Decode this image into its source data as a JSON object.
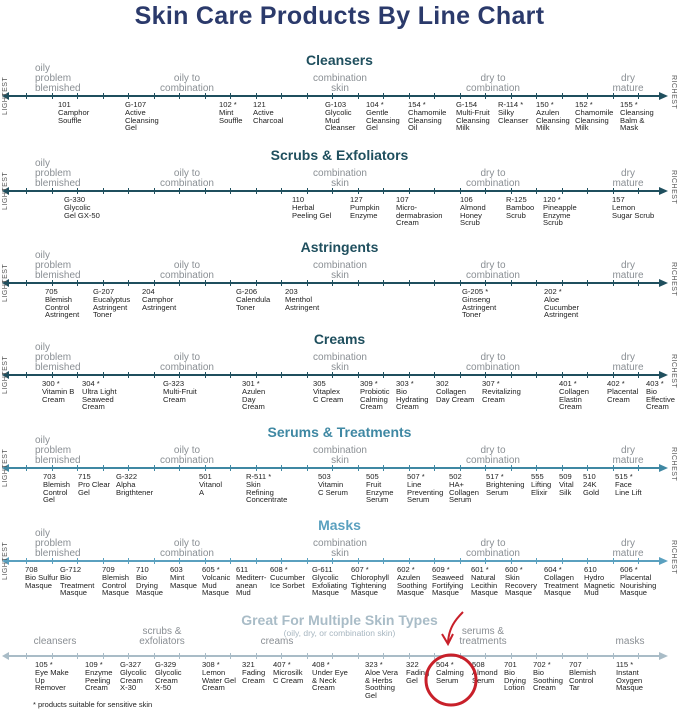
{
  "title": "Skin Care Products By Line Chart",
  "end_labels": {
    "left": "LIGHTEST",
    "right": "RICHEST"
  },
  "zones": [
    "oily\nproblem\nblemished",
    "oily to\ncombination",
    "combination\nskin",
    "dry to\ncombination",
    "dry\nmature"
  ],
  "colors": {
    "title": "#2b3a6b",
    "dark_teal": "#1f4f5e",
    "serums": "#3f88a3",
    "masks": "#5aa0bf",
    "multiple": "#a9bcc7",
    "highlight": "#c8202a"
  },
  "sections": [
    {
      "title": "Cleansers",
      "color": "#1f4f5e",
      "products": [
        {
          "code": "101",
          "name": "Camphor\nSouffle"
        },
        {
          "code": "G-107",
          "name": "Active\nCleansing\nGel"
        },
        {
          "code": "102 *",
          "name": "Mint\nSouffle"
        },
        {
          "code": "121",
          "name": "Active\nCharcoal"
        },
        {
          "code": "G-103",
          "name": "Glycolic\nMud\nCleanser"
        },
        {
          "code": "104 *",
          "name": "Gentle\nCleansing\nGel"
        },
        {
          "code": "154 *",
          "name": "Chamomile\nCleansing\nOil"
        },
        {
          "code": "G-154",
          "name": "Multi-Fruit\nCleansing\nMilk"
        },
        {
          "code": "R-114 *",
          "name": "Silky\nCleanser"
        },
        {
          "code": "150 *",
          "name": "Azulen\nCleansing\nMilk"
        },
        {
          "code": "152 *",
          "name": "Chamomile\nCleansing\nMilk"
        },
        {
          "code": "155 *",
          "name": "Cleansing\nBalm &\nMask"
        }
      ]
    },
    {
      "title": "Scrubs & Exfoliators",
      "color": "#1f4f5e",
      "products": [
        {
          "code": "G-330",
          "name": "Glycolic\nGel GX-50"
        },
        {
          "code": "110",
          "name": "Herbal\nPeeling Gel"
        },
        {
          "code": "127",
          "name": "Pumpkin\nEnzyme"
        },
        {
          "code": "107",
          "name": "Micro-\ndermabrasion\nCream"
        },
        {
          "code": "106",
          "name": "Almond\nHoney\nScrub"
        },
        {
          "code": "R-125",
          "name": "Bamboo\nScrub"
        },
        {
          "code": "120 *",
          "name": "Pineapple\nEnzyme\nScrub"
        },
        {
          "code": "157",
          "name": "Lemon\nSugar Scrub"
        }
      ]
    },
    {
      "title": "Astringents",
      "color": "#1f4f5e",
      "products": [
        {
          "code": "705",
          "name": "Blemish\nControl\nAstringent"
        },
        {
          "code": "G-207",
          "name": "Eucalyptus\nAstringent\nToner"
        },
        {
          "code": "204",
          "name": "Camphor\nAstringent"
        },
        {
          "code": "G-206",
          "name": "Calendula\nToner"
        },
        {
          "code": "203",
          "name": "Menthol\nAstringent"
        },
        {
          "code": "G-205 *",
          "name": "Ginseng\nAstringent\nToner"
        },
        {
          "code": "202 *",
          "name": "Aloe\nCucumber\nAstringent"
        }
      ]
    },
    {
      "title": "Creams",
      "color": "#1f4f5e",
      "products": [
        {
          "code": "300 *",
          "name": "Vitamin B\nCream"
        },
        {
          "code": "304 *",
          "name": "Ultra Light\nSeaweed\nCream"
        },
        {
          "code": "G-323",
          "name": "Multi-Fruit\nCream"
        },
        {
          "code": "301 *",
          "name": "Azulen\nDay\nCream"
        },
        {
          "code": "305",
          "name": "Vitaplex\nC Cream"
        },
        {
          "code": "309 *",
          "name": "Probiotic\nCalming\nCream"
        },
        {
          "code": "303 *",
          "name": "Bio\nHydrating\nCream"
        },
        {
          "code": "302",
          "name": "Collagen\nDay Cream"
        },
        {
          "code": "307 *",
          "name": "Revitalizing\nCream"
        },
        {
          "code": "401 *",
          "name": "Collagen\nElastin\nCream"
        },
        {
          "code": "402 *",
          "name": "Placental\nCream"
        },
        {
          "code": "403 *",
          "name": "Bio\nEffective\nCream"
        }
      ]
    },
    {
      "title": "Serums & Treatments",
      "color": "#3f88a3",
      "products": [
        {
          "code": "703",
          "name": "Blemish\nControl\nGel"
        },
        {
          "code": "715",
          "name": "Pro Clear\nGel"
        },
        {
          "code": "G-322",
          "name": "Alpha\nBrigthtener"
        },
        {
          "code": "501",
          "name": "Vitanol\nA"
        },
        {
          "code": "R-511 *",
          "name": "Skin\nRefining\nConcentrate"
        },
        {
          "code": "503",
          "name": "Vitamin\nC Serum"
        },
        {
          "code": "505",
          "name": "Fruit\nEnzyme\nSerum"
        },
        {
          "code": "507 *",
          "name": "Line\nPreventing\nSerum"
        },
        {
          "code": "502",
          "name": "HA+\nCollagen\nSerum"
        },
        {
          "code": "517 *",
          "name": "Brightening\nSerum"
        },
        {
          "code": "555",
          "name": "Lifting\nElixir"
        },
        {
          "code": "509",
          "name": "Vital\nSilk"
        },
        {
          "code": "510",
          "name": "24K\nGold"
        },
        {
          "code": "515 *",
          "name": "Face\nLine Lift"
        }
      ]
    },
    {
      "title": "Masks",
      "color": "#5aa0bf",
      "products": [
        {
          "code": "708",
          "name": "Bio Sulfur\nMasque"
        },
        {
          "code": "G-712",
          "name": "Bio\nTreatment\nMasque"
        },
        {
          "code": "709",
          "name": "Blemish\nControl\nMasque"
        },
        {
          "code": "710",
          "name": "Bio\nDrying\nMasque"
        },
        {
          "code": "603",
          "name": "Mint\nMasque"
        },
        {
          "code": "605 *",
          "name": "Volcanic\nMud\nMasque"
        },
        {
          "code": "611",
          "name": "Mediterr-\nanean\nMud"
        },
        {
          "code": "608 *",
          "name": "Cucumber\nIce Sorbet"
        },
        {
          "code": "G-611",
          "name": "Glycolic\nExfoliating\nMasque"
        },
        {
          "code": "607 *",
          "name": "Chlorophyll\nTightening\nMasque"
        },
        {
          "code": "602 *",
          "name": "Azulen\nSoothing\nMasque"
        },
        {
          "code": "609 *",
          "name": "Seaweed\nFortifying\nMasque"
        },
        {
          "code": "601 *",
          "name": "Natural\nLecithin\nMasque"
        },
        {
          "code": "600 *",
          "name": "Skin\nRecovery\nMasque"
        },
        {
          "code": "604 *",
          "name": "Collagen\nTreatment\nMasque"
        },
        {
          "code": "610",
          "name": "Hydro\nMagnetic\nMud"
        },
        {
          "code": "606 *",
          "name": "Placental\nNourishing\nMasque"
        }
      ]
    }
  ],
  "multiple": {
    "title": "Great For Multiple Skin Types",
    "subtitle": "(oily, dry, or combination skin)",
    "color": "#a9bcc7",
    "zones": [
      "cleansers",
      "scrubs &\nexfoliators",
      "creams",
      "serums &\ntreatments",
      "masks"
    ],
    "highlighted_product": "504 *",
    "products": [
      {
        "code": "105 *",
        "name": "Eye Make\nUp\nRemover"
      },
      {
        "code": "109 *",
        "name": "Enzyme\nPeeling\nCream"
      },
      {
        "code": "G-327",
        "name": "Glycolic\nCream\nX-30"
      },
      {
        "code": "G-329",
        "name": "Glycolic\nCream\nX-50"
      },
      {
        "code": "308 *",
        "name": "Lemon\nWater Gel\nCream"
      },
      {
        "code": "321",
        "name": "Fading\nCream"
      },
      {
        "code": "407 *",
        "name": "Microsilk\nC Cream"
      },
      {
        "code": "408 *",
        "name": "Under Eye\n& Neck\nCream"
      },
      {
        "code": "323 *",
        "name": "Aloe Vera\n& Herbs\nSoothing\nGel"
      },
      {
        "code": "322",
        "name": "Fading\nGel"
      },
      {
        "code": "504 *",
        "name": "Calming\nSerum"
      },
      {
        "code": "508",
        "name": "Almond\nSerum"
      },
      {
        "code": "701",
        "name": "Bio\nDrying\nLotion"
      },
      {
        "code": "702 *",
        "name": "Bio\nSoothing\nCream"
      },
      {
        "code": "707",
        "name": "Blemish\nControl\nTar"
      },
      {
        "code": "115 *",
        "name": "Instant\nOxygen\nMasque"
      }
    ]
  },
  "footnote": "* products suitable for sensitive skin"
}
